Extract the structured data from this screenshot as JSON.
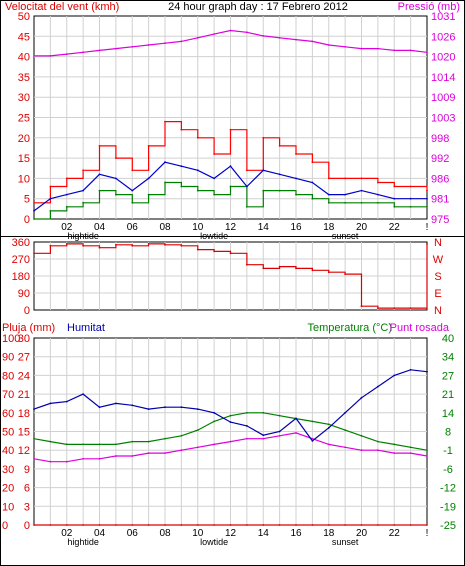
{
  "header": {
    "left_label": "Velocitat del vent (kmh)",
    "center_label": "24 hour graph day : 17 Febrero 2012",
    "right_label": "Pressió (mb)"
  },
  "colors": {
    "wind_avg": "#0000cc",
    "wind_gust": "#ff0000",
    "wind_low": "#008000",
    "pressure": "#dd00dd",
    "direction": "#dd0000",
    "rain": "#dd0000",
    "humidity": "#0000aa",
    "temperature": "#008000",
    "dewpoint": "#dd00dd",
    "grid": "#d0d0d0",
    "axis": "#000000"
  },
  "chart_data": [
    {
      "id": "wind-pressure",
      "type": "line",
      "xlabel": "",
      "x_ticks": [
        "02",
        "04",
        "06",
        "08",
        "10",
        "12",
        "14",
        "16",
        "18",
        "20",
        "22",
        "!"
      ],
      "markers": [
        {
          "label": "hightide",
          "after_tick": "02"
        },
        {
          "label": "lowtide",
          "after_tick": "10"
        },
        {
          "label": "sunset",
          "after_tick": "18"
        }
      ],
      "y_left": {
        "label": "Velocitat del vent (kmh)",
        "ticks": [
          0,
          5,
          10,
          15,
          20,
          25,
          30,
          35,
          40,
          45,
          50
        ],
        "range": [
          0,
          50
        ]
      },
      "y_right": {
        "label": "Pressió (mb)",
        "ticks": [
          975,
          981,
          986,
          992,
          998,
          1003,
          1009,
          1014,
          1020,
          1026,
          1031
        ],
        "range": [
          975,
          1031
        ]
      },
      "hours": [
        0,
        1,
        2,
        3,
        4,
        5,
        6,
        7,
        8,
        9,
        10,
        11,
        12,
        13,
        14,
        15,
        16,
        17,
        18,
        19,
        20,
        21,
        22,
        23,
        24
      ],
      "series": [
        {
          "key": "gust",
          "axis": "left",
          "values": [
            4,
            8,
            10,
            12,
            18,
            15,
            12,
            18,
            24,
            22,
            20,
            16,
            22,
            12,
            20,
            18,
            16,
            14,
            10,
            10,
            10,
            9,
            8,
            8,
            7
          ]
        },
        {
          "key": "avg",
          "axis": "left",
          "values": [
            2,
            5,
            6,
            7,
            11,
            10,
            7,
            10,
            14,
            13,
            12,
            10,
            13,
            8,
            12,
            11,
            10,
            9,
            6,
            6,
            7,
            6,
            5,
            5,
            5
          ]
        },
        {
          "key": "low",
          "axis": "left",
          "values": [
            0,
            2,
            3,
            4,
            7,
            6,
            4,
            6,
            9,
            8,
            7,
            6,
            8,
            3,
            7,
            7,
            6,
            5,
            4,
            4,
            4,
            4,
            3,
            3,
            3
          ]
        },
        {
          "key": "pressure",
          "axis": "right",
          "values": [
            1020,
            1020,
            1020.5,
            1021,
            1021.5,
            1022,
            1022.5,
            1023,
            1023.5,
            1024,
            1025,
            1026,
            1027,
            1026.5,
            1025.5,
            1025,
            1024.5,
            1024,
            1023,
            1022.5,
            1022,
            1022,
            1021.5,
            1021.5,
            1021
          ]
        }
      ]
    },
    {
      "id": "wind-direction",
      "type": "line",
      "y_left": {
        "ticks": [
          0,
          90,
          180,
          270,
          360
        ],
        "range": [
          0,
          360
        ]
      },
      "y_right": {
        "ticks": [
          "N",
          "W",
          "S",
          "E",
          "N"
        ]
      },
      "hours": [
        0,
        1,
        2,
        3,
        4,
        5,
        6,
        7,
        8,
        9,
        10,
        11,
        12,
        13,
        14,
        15,
        16,
        17,
        18,
        19,
        20,
        21,
        22,
        23,
        24
      ],
      "series": [
        {
          "key": "direction",
          "axis": "left",
          "values": [
            300,
            340,
            350,
            340,
            330,
            345,
            340,
            350,
            345,
            340,
            320,
            310,
            300,
            240,
            220,
            230,
            220,
            210,
            200,
            190,
            20,
            10,
            10,
            10,
            350
          ]
        }
      ]
    },
    {
      "id": "rain-humidity-temperature",
      "type": "line",
      "title_left": "Pluja (mm)",
      "title_mid": "Humitat",
      "title_right": "Temperatura (°C)",
      "title_right2": "Punt rosada",
      "x_ticks": [
        "02",
        "04",
        "06",
        "08",
        "10",
        "12",
        "14",
        "16",
        "18",
        "20",
        "22",
        "!"
      ],
      "markers": [
        {
          "label": "hightide",
          "after_tick": "02"
        },
        {
          "label": "lowtide",
          "after_tick": "10"
        },
        {
          "label": "sunset",
          "after_tick": "18"
        }
      ],
      "y_rain": {
        "label": "Pluja (mm)",
        "ticks": [
          0,
          3,
          6,
          9,
          12,
          15,
          18,
          21,
          24,
          27,
          30
        ],
        "range": [
          0,
          30
        ]
      },
      "y_humidity": {
        "label": "Humitat",
        "ticks": [
          0,
          10,
          20,
          30,
          40,
          50,
          60,
          70,
          80,
          90,
          100
        ],
        "range": [
          0,
          100
        ]
      },
      "y_temp": {
        "label": "Temperatura (°C)",
        "ticks": [
          -25,
          -19,
          -12,
          -6,
          -1,
          8,
          14,
          21,
          27,
          34,
          40
        ],
        "range": [
          -25,
          40
        ]
      },
      "hours": [
        0,
        1,
        2,
        3,
        4,
        5,
        6,
        7,
        8,
        9,
        10,
        11,
        12,
        13,
        14,
        15,
        16,
        17,
        18,
        19,
        20,
        21,
        22,
        23,
        24
      ],
      "series": [
        {
          "key": "rain",
          "axis": "rain",
          "values": [
            0,
            0,
            0,
            0,
            0,
            0,
            0,
            0,
            0,
            0,
            0,
            0,
            0,
            0,
            0,
            0,
            0,
            0,
            0,
            0,
            0,
            0,
            0,
            0,
            0
          ]
        },
        {
          "key": "humidity",
          "axis": "humidity",
          "values": [
            62,
            65,
            66,
            70,
            63,
            65,
            64,
            62,
            63,
            63,
            62,
            60,
            55,
            53,
            48,
            50,
            57,
            45,
            52,
            60,
            68,
            74,
            80,
            83,
            82
          ]
        },
        {
          "key": "temperature",
          "axis": "temp",
          "values": [
            5,
            4,
            3,
            3,
            3,
            3,
            4,
            4,
            5,
            6,
            8,
            11,
            13,
            14,
            14,
            13,
            12,
            11,
            10,
            8,
            6,
            4,
            3,
            2,
            1
          ]
        },
        {
          "key": "dewpoint",
          "axis": "temp",
          "values": [
            -2,
            -3,
            -3,
            -2,
            -2,
            -1,
            -1,
            0,
            0,
            1,
            2,
            3,
            4,
            5,
            5,
            6,
            7,
            5,
            3,
            2,
            1,
            1,
            0,
            0,
            -1
          ]
        }
      ]
    }
  ]
}
